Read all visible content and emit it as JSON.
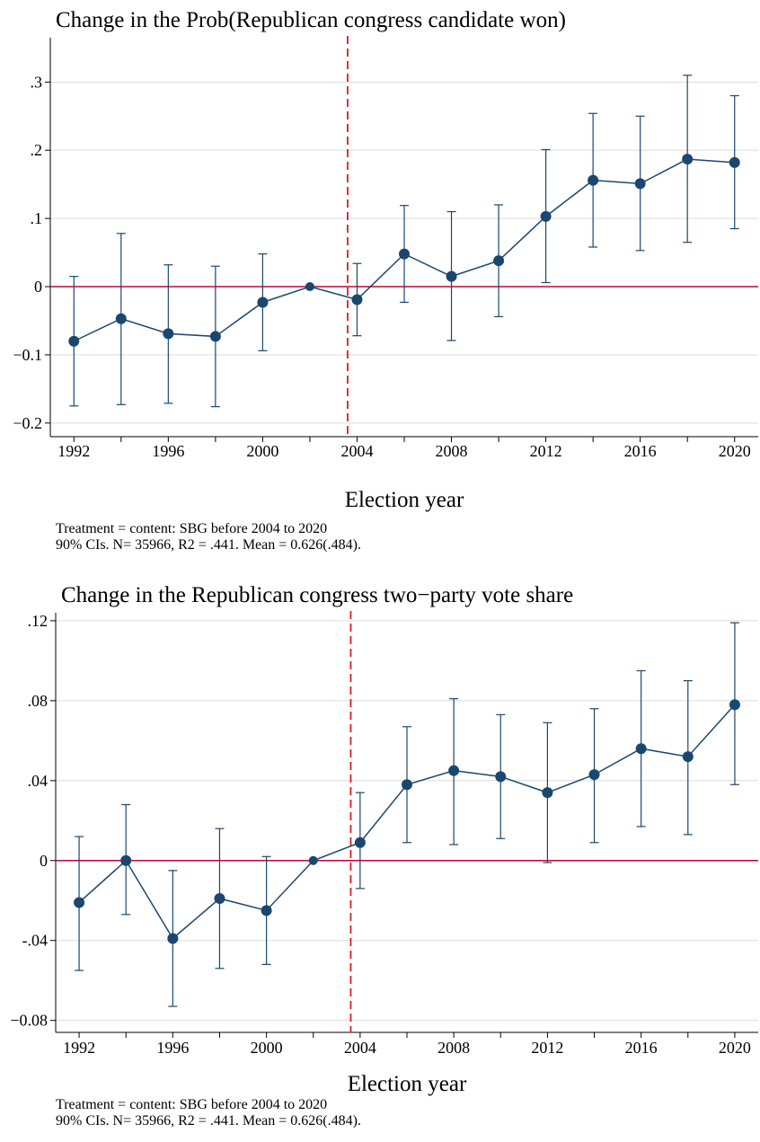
{
  "chart_data": [
    {
      "type": "line",
      "title": "Change in the Prob(Republican congress candidate won)",
      "xlabel": "Election year",
      "ylabel": "",
      "x_ticks": [
        "1992",
        "1996",
        "2000",
        "2004",
        "2008",
        "2012",
        "2016",
        "2020"
      ],
      "y_ticks": [
        {
          "value": -0.2,
          "label": "−0.2"
        },
        {
          "value": -0.1,
          "label": "−0.1"
        },
        {
          "value": 0,
          "label": "0"
        },
        {
          "value": 0.1,
          "label": ".1"
        },
        {
          "value": 0.2,
          "label": ".2"
        },
        {
          "value": 0.3,
          "label": ".3"
        }
      ],
      "xlim": [
        1991,
        2021
      ],
      "ylim": [
        -0.22,
        0.365
      ],
      "grid": true,
      "reference_line_x": 2003.6,
      "reference_line_y": 0,
      "series": [
        {
          "x": [
            1992,
            1994,
            1996,
            1998,
            2000,
            2002,
            2004,
            2006,
            2008,
            2010,
            2012,
            2014,
            2016,
            2018,
            2020
          ],
          "values": [
            -0.08,
            -0.047,
            -0.069,
            -0.073,
            -0.023,
            0.0,
            -0.019,
            0.048,
            0.015,
            0.038,
            0.103,
            0.156,
            0.151,
            0.187,
            0.182
          ],
          "ci_low": [
            -0.175,
            -0.173,
            -0.171,
            -0.176,
            -0.094,
            0.0,
            -0.072,
            -0.023,
            -0.079,
            -0.044,
            0.006,
            0.058,
            0.053,
            0.065,
            0.085
          ],
          "ci_high": [
            0.015,
            0.078,
            0.032,
            0.03,
            0.048,
            0.0,
            0.034,
            0.119,
            0.11,
            0.12,
            0.201,
            0.254,
            0.25,
            0.31,
            0.28
          ]
        }
      ],
      "notes": [
        "Treatment = content: SBG before 2004 to 2020",
        "90% CIs. N= 35966, R2 = .441. Mean = 0.626(.484)."
      ],
      "colors": {
        "series": "#1a476f",
        "zero_line": "#c10534",
        "vline": "#e41a1c",
        "grid": "#dcdcdc"
      }
    },
    {
      "type": "line",
      "title": "Change in the Republican congress two−party vote share",
      "xlabel": "Election year",
      "ylabel": "",
      "x_ticks": [
        "1992",
        "1996",
        "2000",
        "2004",
        "2008",
        "2012",
        "2016",
        "2020"
      ],
      "y_ticks": [
        {
          "value": -0.08,
          "label": "−0.08"
        },
        {
          "value": -0.04,
          "label": "-.04"
        },
        {
          "value": 0,
          "label": "0"
        },
        {
          "value": 0.04,
          "label": ".04"
        },
        {
          "value": 0.08,
          "label": ".08"
        },
        {
          "value": 0.12,
          "label": ".12"
        }
      ],
      "xlim": [
        1991,
        2021
      ],
      "ylim": [
        -0.086,
        0.124
      ],
      "grid": true,
      "reference_line_x": 2003.6,
      "reference_line_y": 0,
      "series": [
        {
          "x": [
            1992,
            1994,
            1996,
            1998,
            2000,
            2002,
            2004,
            2006,
            2008,
            2010,
            2012,
            2014,
            2016,
            2018,
            2020
          ],
          "values": [
            -0.021,
            0.0,
            -0.039,
            -0.019,
            -0.025,
            0.0,
            0.009,
            0.038,
            0.045,
            0.042,
            0.034,
            0.043,
            0.056,
            0.052,
            0.078
          ],
          "ci_low": [
            -0.055,
            -0.027,
            -0.073,
            -0.054,
            -0.052,
            0.0,
            -0.014,
            0.009,
            0.008,
            0.011,
            -0.001,
            0.009,
            0.017,
            0.013,
            0.038
          ],
          "ci_high": [
            0.012,
            0.028,
            -0.005,
            0.016,
            0.002,
            0.0,
            0.034,
            0.067,
            0.081,
            0.073,
            0.069,
            0.076,
            0.095,
            0.09,
            0.119
          ]
        }
      ],
      "notes": [
        "Treatment = content: SBG before 2004 to 2020",
        "90% CIs. N= 35966, R2 = .441. Mean = 0.626(.484)."
      ],
      "colors": {
        "series": "#1a476f",
        "zero_line": "#c10534",
        "vline": "#e41a1c",
        "grid": "#dcdcdc"
      }
    }
  ]
}
